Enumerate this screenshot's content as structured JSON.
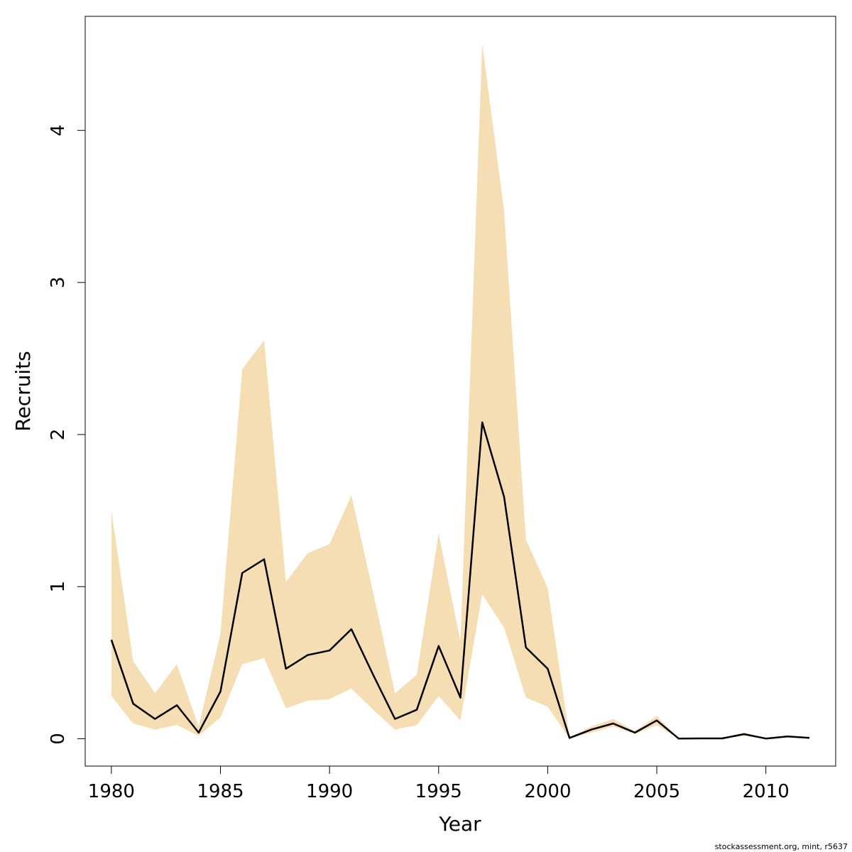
{
  "chart_data": {
    "type": "area",
    "title": "",
    "xlabel": "Year",
    "ylabel": "Recruits",
    "xlim": [
      1978.8,
      2013.2
    ],
    "ylim": [
      -0.18,
      4.75
    ],
    "x_ticks": [
      1980,
      1985,
      1990,
      1995,
      2000,
      2005,
      2010
    ],
    "x_tick_labels": [
      "1980",
      "1985",
      "1990",
      "1995",
      "2000",
      "2005",
      "2010"
    ],
    "y_ticks": [
      0,
      1,
      2,
      3,
      4
    ],
    "y_tick_labels": [
      "0",
      "1",
      "2",
      "3",
      "4"
    ],
    "grid": false,
    "legend": "none",
    "band_color": "#f5deb3",
    "line_color": "#000000",
    "x": [
      1980,
      1981,
      1982,
      1983,
      1984,
      1985,
      1986,
      1987,
      1988,
      1989,
      1990,
      1991,
      1992,
      1993,
      1994,
      1995,
      1996,
      1997,
      1998,
      1999,
      2000,
      2001,
      2002,
      2003,
      2004,
      2005,
      2006,
      2007,
      2008,
      2009,
      2010,
      2011,
      2012
    ],
    "series": [
      {
        "role": "estimate",
        "values": [
          0.65,
          0.23,
          0.13,
          0.22,
          0.04,
          0.31,
          1.09,
          1.18,
          0.46,
          0.55,
          0.58,
          0.72,
          0.42,
          0.13,
          0.19,
          0.61,
          0.27,
          2.08,
          1.59,
          0.6,
          0.46,
          0.005,
          0.06,
          0.1,
          0.04,
          0.12,
          0.001,
          0.002,
          0.002,
          0.03,
          0.001,
          0.015,
          0.006
        ]
      },
      {
        "role": "upper",
        "values": [
          1.5,
          0.51,
          0.3,
          0.49,
          0.08,
          0.69,
          2.43,
          2.62,
          1.03,
          1.22,
          1.28,
          1.6,
          0.96,
          0.3,
          0.42,
          1.35,
          0.64,
          4.57,
          3.47,
          1.31,
          0.99,
          0.01,
          0.08,
          0.13,
          0.05,
          0.15,
          0.002,
          0.003,
          0.003,
          0.04,
          0.002,
          0.02,
          0.008
        ]
      },
      {
        "role": "lower",
        "values": [
          0.28,
          0.1,
          0.06,
          0.09,
          0.02,
          0.14,
          0.49,
          0.53,
          0.2,
          0.25,
          0.26,
          0.33,
          0.19,
          0.06,
          0.09,
          0.28,
          0.12,
          0.95,
          0.73,
          0.27,
          0.21,
          0.002,
          0.04,
          0.08,
          0.03,
          0.09,
          0.0005,
          0.001,
          0.001,
          0.02,
          0.0005,
          0.01,
          0.004
        ]
      }
    ]
  },
  "credit": "stockassessment.org, mint, r5637"
}
